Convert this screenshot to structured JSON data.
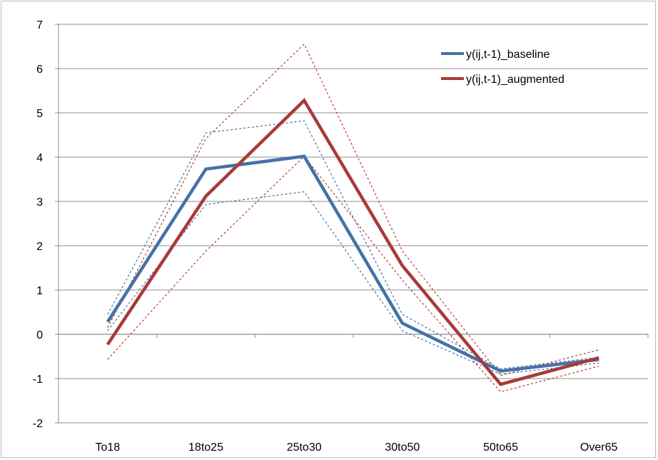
{
  "chart_data": {
    "type": "line",
    "categories": [
      "To18",
      "18to25",
      "25to30",
      "30to50",
      "50to65",
      "Over65"
    ],
    "ylim": [
      -2,
      7
    ],
    "yticks": [
      -2,
      -1,
      0,
      1,
      2,
      3,
      4,
      5,
      6,
      7
    ],
    "grid": true,
    "legend_position": "top-right",
    "series": [
      {
        "name": "y(ij,t-1)_baseline",
        "color": "#4472a8",
        "style": "solid",
        "values": [
          0.28,
          3.73,
          4.02,
          0.25,
          -0.83,
          -0.57
        ]
      },
      {
        "name": "y(ij,t-1)_augmented",
        "color": "#a83a3a",
        "style": "solid",
        "values": [
          -0.23,
          3.12,
          5.28,
          1.55,
          -1.13,
          -0.53
        ]
      },
      {
        "name": "",
        "color": "#4472a8",
        "style": "dashed",
        "values": [
          0.45,
          4.55,
          4.82,
          0.45,
          -0.78,
          -0.52
        ]
      },
      {
        "name": "",
        "color": "#4472a8",
        "style": "dashed",
        "values": [
          0.08,
          2.93,
          3.22,
          0.08,
          -0.9,
          -0.65
        ]
      },
      {
        "name": "",
        "color": "#c0392b",
        "style": "dashed",
        "values": [
          0.15,
          4.42,
          6.55,
          1.88,
          -0.93,
          -0.35
        ]
      },
      {
        "name": "",
        "color": "#c0392b",
        "style": "dashed",
        "values": [
          -0.57,
          1.88,
          4.02,
          1.22,
          -1.3,
          -0.72
        ]
      }
    ]
  }
}
